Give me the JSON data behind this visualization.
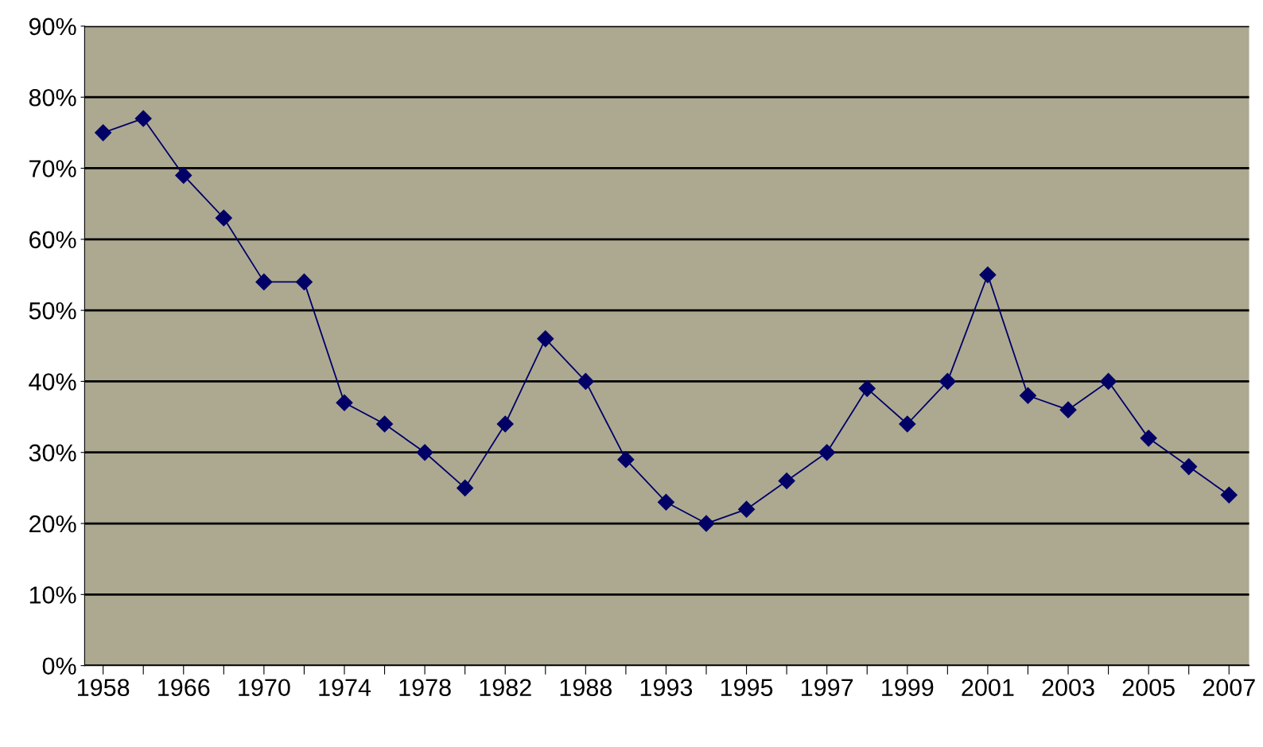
{
  "chart_data": {
    "type": "line",
    "categories": [
      "1958",
      null,
      "1966",
      null,
      "1970",
      null,
      "1974",
      null,
      "1978",
      null,
      "1982",
      null,
      "1988",
      null,
      "1993",
      null,
      "1995",
      null,
      "1997",
      null,
      "1999",
      null,
      "2001",
      null,
      "2003",
      null,
      "2005",
      null,
      "2007"
    ],
    "series": [
      {
        "color": "#000066",
        "values": [
          75,
          77,
          69,
          63,
          54,
          54,
          37,
          34,
          30,
          25,
          34,
          46,
          40,
          29,
          23,
          20,
          22,
          26,
          30,
          39,
          34,
          40,
          55,
          38,
          36,
          40,
          32,
          28,
          24
        ]
      }
    ],
    "ylim": [
      0,
      90
    ],
    "yticks": [
      {
        "value": 0,
        "label": "0%"
      },
      {
        "value": 10,
        "label": "10%"
      },
      {
        "value": 20,
        "label": "20%"
      },
      {
        "value": 30,
        "label": "30%"
      },
      {
        "value": 40,
        "label": "40%"
      },
      {
        "value": 50,
        "label": "50%"
      },
      {
        "value": 60,
        "label": "60%"
      },
      {
        "value": 70,
        "label": "70%"
      },
      {
        "value": 80,
        "label": "80%"
      },
      {
        "value": 90,
        "label": "90%"
      }
    ],
    "grid": "y",
    "marker": "diamond",
    "line_style": "solid",
    "legend": false
  }
}
